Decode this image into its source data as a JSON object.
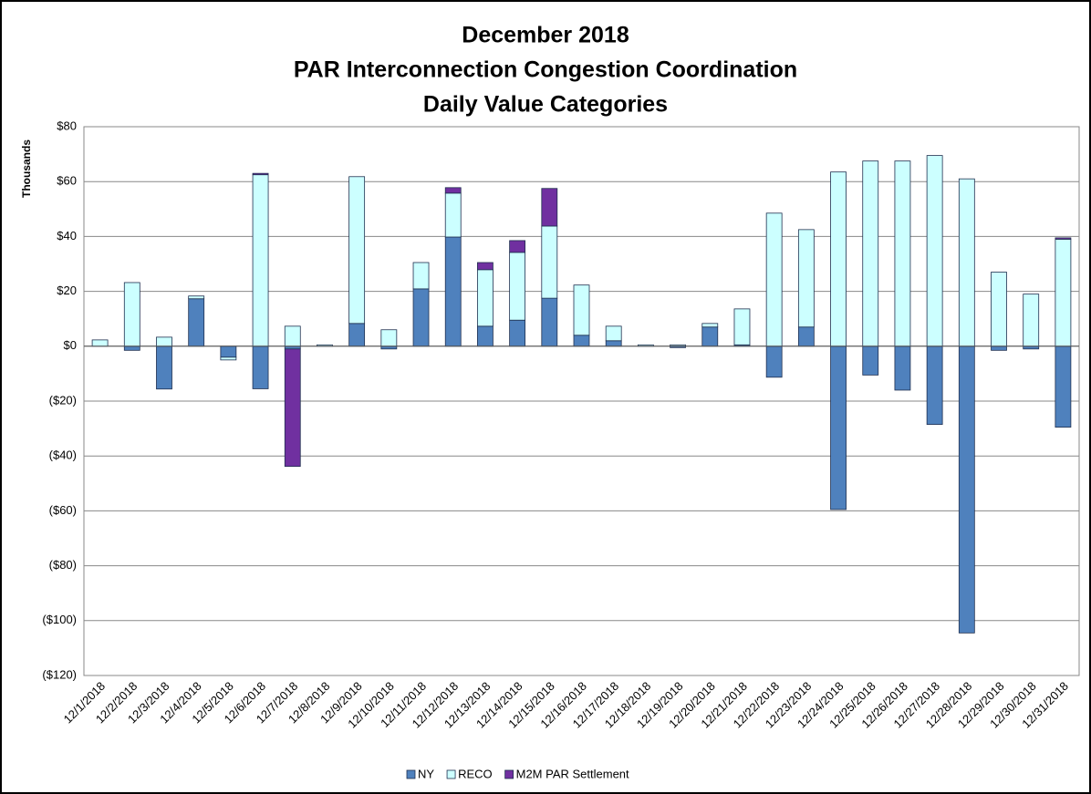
{
  "chart_data": {
    "type": "stacked_bar",
    "title": [
      "December 2018",
      "PAR Interconnection Congestion Coordination",
      "Daily Value Categories"
    ],
    "y_label": "Thousands",
    "categories": [
      "12/1/2018",
      "12/2/2018",
      "12/3/2018",
      "12/4/2018",
      "12/5/2018",
      "12/6/2018",
      "12/7/2018",
      "12/8/2018",
      "12/9/2018",
      "12/10/2018",
      "12/11/2018",
      "12/12/2018",
      "12/13/2018",
      "12/14/2018",
      "12/15/2018",
      "12/16/2018",
      "12/17/2018",
      "12/18/2018",
      "12/19/2018",
      "12/20/2018",
      "12/21/2018",
      "12/22/2018",
      "12/23/2018",
      "12/24/2018",
      "12/25/2018",
      "12/26/2018",
      "12/27/2018",
      "12/28/2018",
      "12/29/2018",
      "12/30/2018",
      "12/31/2018"
    ],
    "series": [
      {
        "name": "NY",
        "color": "#4f81bd",
        "values": [
          0,
          -1.5,
          -15.6,
          17.3,
          -4,
          -15.5,
          -1,
          0,
          8.3,
          -1,
          20.9,
          39.8,
          7.3,
          9.5,
          17.5,
          4,
          2,
          0,
          -0.5,
          7,
          0.5,
          -11.3,
          7,
          -59.5,
          -10.5,
          -16,
          -28.5,
          -104.5,
          -1.5,
          -1,
          -29.5
        ]
      },
      {
        "name": "RECO",
        "color": "#ccffff",
        "values": [
          2.3,
          23.2,
          3.3,
          1,
          -1,
          62.5,
          7.3,
          0.5,
          53.5,
          6,
          9.6,
          16,
          20.6,
          24.7,
          26.3,
          18.3,
          5.3,
          0.5,
          0.5,
          1.3,
          13.1,
          48.5,
          35.5,
          63.5,
          67.5,
          67.5,
          69.5,
          61,
          27,
          19,
          39
        ]
      },
      {
        "name": "M2M PAR Settlement",
        "color": "#7030a0",
        "values": [
          0,
          0,
          0,
          0,
          0,
          0.5,
          -42.8,
          0,
          0,
          0,
          0,
          2,
          2.6,
          4.3,
          13.7,
          0,
          0,
          0,
          0,
          0,
          0,
          0,
          0,
          0,
          0,
          0,
          0,
          0,
          0,
          0,
          0.5
        ]
      }
    ],
    "ylim": [
      -120,
      80
    ],
    "yticks": [
      {
        "value": -120,
        "label": "($120)"
      },
      {
        "value": -100,
        "label": "($100)"
      },
      {
        "value": -80,
        "label": "($80)"
      },
      {
        "value": -60,
        "label": "($60)"
      },
      {
        "value": -40,
        "label": "($40)"
      },
      {
        "value": -20,
        "label": "($20)"
      },
      {
        "value": 0,
        "label": "$0"
      },
      {
        "value": 20,
        "label": "$20"
      },
      {
        "value": 40,
        "label": "$40"
      },
      {
        "value": 60,
        "label": "$60"
      },
      {
        "value": 80,
        "label": "$80"
      }
    ],
    "negative_tick_color": "#ff0000",
    "grid": true,
    "legend": "bottom"
  }
}
